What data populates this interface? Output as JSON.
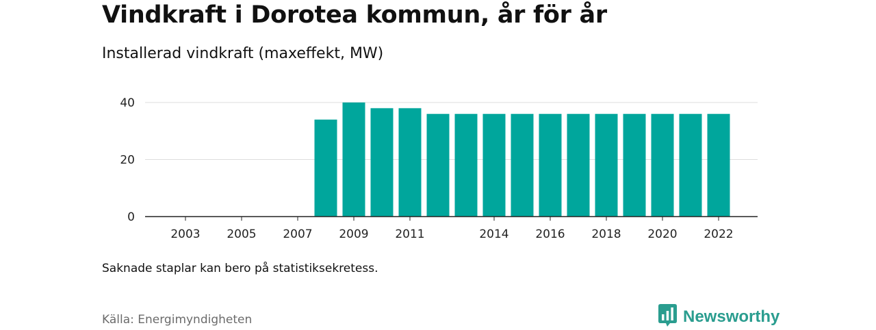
{
  "title": "Vindkraft i Dorotea kommun, år för år",
  "subtitle": "Installerad vindkraft (maxeffekt, MW)",
  "note": "Saknade staplar kan bero på statistiksekretess.",
  "source": "Källa: Energimyndigheten",
  "brand": {
    "name": "Newsworthy",
    "color": "#2a9d8f",
    "icon": "bar-chart-speech-bubble-icon"
  },
  "chart_data": {
    "type": "bar",
    "x": [
      2008,
      2009,
      2010,
      2011,
      2012,
      2013,
      2014,
      2015,
      2016,
      2017,
      2018,
      2019,
      2020,
      2021,
      2022
    ],
    "values": [
      34,
      40,
      38,
      38,
      36,
      36,
      36,
      36,
      36,
      36,
      36,
      36,
      36,
      36,
      36
    ],
    "xlim": [
      2001,
      2023
    ],
    "ylim": [
      0,
      40
    ],
    "yticks": [
      0,
      20,
      40
    ],
    "xticks": [
      2003,
      2005,
      2007,
      2009,
      2011,
      2014,
      2016,
      2018,
      2020,
      2022
    ],
    "grid": true,
    "bar_color": "#00a69c",
    "title": "Vindkraft i Dorotea kommun, år för år",
    "subtitle": "Installerad vindkraft (maxeffekt, MW)",
    "xlabel": "",
    "ylabel": ""
  }
}
